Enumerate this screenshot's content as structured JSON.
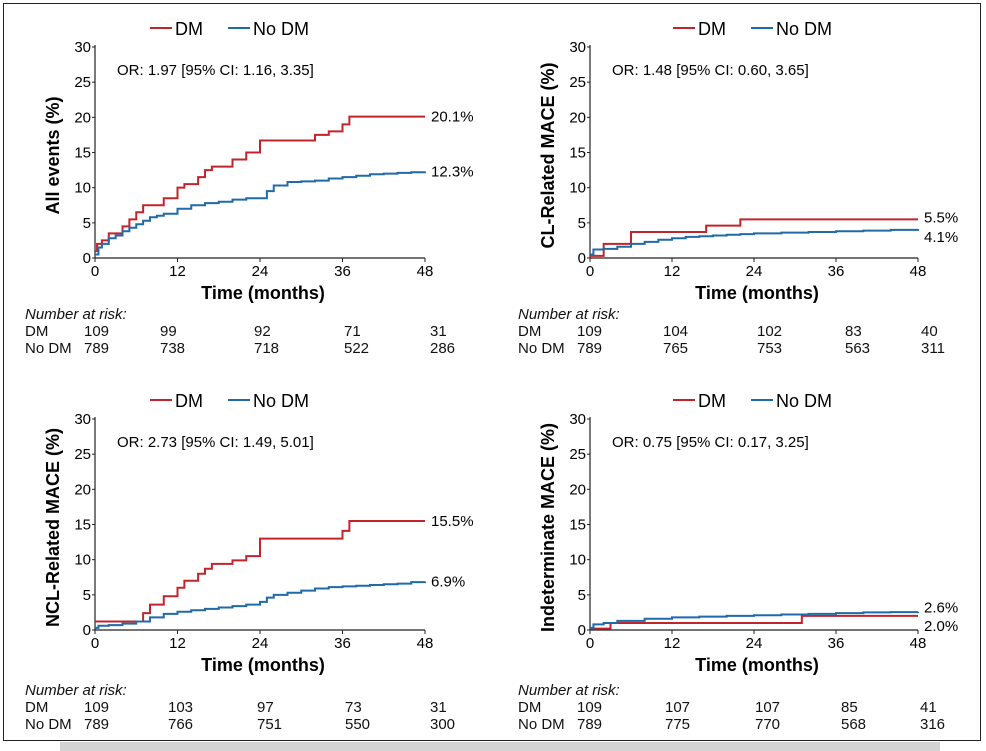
{
  "colors": {
    "dm": "#c0252b",
    "nodm": "#1f6aa8"
  },
  "chart_data": [
    {
      "type": "line",
      "xlabel": "Time (months)",
      "ylabel": "All events (%)",
      "xticks": [
        0,
        12,
        24,
        36,
        48
      ],
      "yticks": [
        0,
        5,
        10,
        15,
        20,
        25,
        30
      ],
      "xlim": [
        0,
        48
      ],
      "ylim": [
        0,
        30
      ],
      "legend": {
        "placement": "top-center",
        "entries": [
          "DM",
          "No DM"
        ]
      },
      "annotation": "OR: 1.97 [95% CI: 1.16, 3.35]",
      "series": [
        {
          "name": "DM",
          "color": "#c0252b",
          "end_label": "20.1%",
          "x": [
            0,
            0.3,
            1,
            2,
            3,
            4,
            5,
            6,
            7,
            8,
            10,
            12,
            13,
            15,
            16,
            17,
            18,
            20,
            22,
            24,
            26,
            28,
            30,
            32,
            34,
            36,
            37,
            38,
            40,
            42,
            44,
            46,
            48
          ],
          "y": [
            1.0,
            2.0,
            2.5,
            3.5,
            3.5,
            4.5,
            5.5,
            6.5,
            7.5,
            7.5,
            8.5,
            10.0,
            10.5,
            11.5,
            12.5,
            13.0,
            13.0,
            14.0,
            15.0,
            16.7,
            16.7,
            16.7,
            16.7,
            17.5,
            18.0,
            19.0,
            20.1,
            20.1,
            20.1,
            20.1,
            20.1,
            20.1,
            20.1
          ]
        },
        {
          "name": "No DM",
          "color": "#1f6aa8",
          "end_label": "12.3%",
          "x": [
            0,
            0.5,
            1,
            2,
            3,
            4,
            5,
            6,
            7,
            8,
            9,
            10,
            12,
            14,
            16,
            18,
            20,
            22,
            24,
            25,
            26,
            28,
            30,
            32,
            34,
            36,
            38,
            40,
            42,
            44,
            46,
            48
          ],
          "y": [
            0.5,
            1.5,
            2.0,
            2.8,
            3.2,
            3.8,
            4.3,
            4.8,
            5.3,
            5.8,
            6.0,
            6.3,
            7.0,
            7.5,
            7.8,
            8.0,
            8.3,
            8.5,
            8.5,
            9.5,
            10.3,
            10.8,
            10.9,
            11.0,
            11.3,
            11.5,
            11.7,
            11.9,
            12.0,
            12.1,
            12.2,
            12.3
          ]
        }
      ],
      "risk_table": {
        "title": "Number at risk:",
        "rows": [
          {
            "label": "DM",
            "values": [
              "109",
              "99",
              "92",
              "71",
              "31"
            ]
          },
          {
            "label": "No DM",
            "values": [
              "789",
              "738",
              "718",
              "522",
              "286"
            ]
          }
        ]
      }
    },
    {
      "type": "line",
      "xlabel": "Time (months)",
      "ylabel": "CL-Related MACE (%)",
      "xticks": [
        0,
        12,
        24,
        36,
        48
      ],
      "yticks": [
        0,
        5,
        10,
        15,
        20,
        25,
        30
      ],
      "xlim": [
        0,
        48
      ],
      "ylim": [
        0,
        30
      ],
      "legend": {
        "placement": "top-center",
        "entries": [
          "DM",
          "No DM"
        ]
      },
      "annotation": "OR: 1.48 [95% CI: 0.60, 3.65]",
      "series": [
        {
          "name": "DM",
          "color": "#c0252b",
          "end_label": "5.5%",
          "x": [
            0,
            1,
            2,
            5,
            6,
            10,
            16,
            17,
            20,
            22,
            30,
            40,
            48
          ],
          "y": [
            0.3,
            0.3,
            2.0,
            2.0,
            3.7,
            3.7,
            3.7,
            4.6,
            4.6,
            5.5,
            5.5,
            5.5,
            5.5
          ]
        },
        {
          "name": "No DM",
          "color": "#1f6aa8",
          "end_label": "4.1%",
          "x": [
            0,
            0.5,
            2,
            4,
            6,
            8,
            10,
            12,
            14,
            16,
            18,
            20,
            22,
            24,
            28,
            32,
            36,
            40,
            44,
            48
          ],
          "y": [
            0.5,
            1.2,
            1.3,
            1.6,
            2.0,
            2.3,
            2.6,
            2.8,
            3.0,
            3.1,
            3.2,
            3.3,
            3.4,
            3.5,
            3.6,
            3.7,
            3.8,
            3.9,
            4.0,
            4.1
          ]
        }
      ],
      "risk_table": {
        "title": "Number at risk:",
        "rows": [
          {
            "label": "DM",
            "values": [
              "109",
              "104",
              "102",
              "83",
              "40"
            ]
          },
          {
            "label": "No DM",
            "values": [
              "789",
              "765",
              "753",
              "563",
              "311"
            ]
          }
        ]
      }
    },
    {
      "type": "line",
      "xlabel": "Time (months)",
      "ylabel": "NCL-Related MACE (%)",
      "xticks": [
        0,
        12,
        24,
        36,
        48
      ],
      "yticks": [
        0,
        5,
        10,
        15,
        20,
        25,
        30
      ],
      "xlim": [
        0,
        48
      ],
      "ylim": [
        0,
        30
      ],
      "legend": {
        "placement": "top-center",
        "entries": [
          "DM",
          "No DM"
        ]
      },
      "annotation": "OR: 2.73 [95% CI: 1.49, 5.01]",
      "series": [
        {
          "name": "DM",
          "color": "#c0252b",
          "end_label": "15.5%",
          "x": [
            0,
            6,
            7,
            8,
            10,
            12,
            13,
            15,
            16,
            17,
            20,
            22,
            24,
            26,
            30,
            34,
            36,
            37,
            38,
            42,
            48
          ],
          "y": [
            1.2,
            1.2,
            2.4,
            3.6,
            4.8,
            6.0,
            7.0,
            8.0,
            8.7,
            9.4,
            9.9,
            10.5,
            13.0,
            13.0,
            13.0,
            13.0,
            14.1,
            15.5,
            15.5,
            15.5,
            15.5
          ]
        },
        {
          "name": "No DM",
          "color": "#1f6aa8",
          "end_label": "6.9%",
          "x": [
            0,
            0.5,
            2,
            4,
            6,
            8,
            10,
            12,
            14,
            16,
            18,
            20,
            22,
            24,
            25,
            26,
            28,
            30,
            32,
            34,
            36,
            38,
            40,
            42,
            44,
            46,
            48
          ],
          "y": [
            0.3,
            0.6,
            0.7,
            0.9,
            1.2,
            1.8,
            2.3,
            2.6,
            2.8,
            3.0,
            3.2,
            3.4,
            3.6,
            4.0,
            4.6,
            5.0,
            5.3,
            5.6,
            5.9,
            6.1,
            6.2,
            6.3,
            6.4,
            6.5,
            6.6,
            6.8,
            6.9
          ]
        }
      ],
      "risk_table": {
        "title": "Number at risk:",
        "rows": [
          {
            "label": "DM",
            "values": [
              "109",
              "103",
              "97",
              "73",
              "31"
            ]
          },
          {
            "label": "No DM",
            "values": [
              "789",
              "766",
              "751",
              "550",
              "300"
            ]
          }
        ]
      }
    },
    {
      "type": "line",
      "xlabel": "Time (months)",
      "ylabel": "Indeterminate MACE (%)",
      "xticks": [
        0,
        12,
        24,
        36,
        48
      ],
      "yticks": [
        0,
        5,
        10,
        15,
        20,
        25,
        30
      ],
      "xlim": [
        0,
        48
      ],
      "ylim": [
        0,
        30
      ],
      "legend": {
        "placement": "top-center",
        "entries": [
          "DM",
          "No DM"
        ]
      },
      "annotation": "OR: 0.75 [95% CI: 0.17, 3.25]",
      "series": [
        {
          "name": "DM",
          "color": "#c0252b",
          "end_label": "2.0%",
          "x": [
            0,
            1,
            3,
            10,
            20,
            30,
            31,
            40,
            48
          ],
          "y": [
            0.2,
            0.2,
            1.0,
            1.0,
            1.0,
            1.0,
            2.0,
            2.0,
            2.0
          ]
        },
        {
          "name": "No DM",
          "color": "#1f6aa8",
          "end_label": "2.6%",
          "x": [
            0,
            0.5,
            2,
            4,
            8,
            12,
            16,
            20,
            24,
            28,
            32,
            36,
            40,
            44,
            48
          ],
          "y": [
            0.3,
            0.8,
            1.0,
            1.3,
            1.6,
            1.8,
            1.9,
            2.0,
            2.1,
            2.2,
            2.3,
            2.4,
            2.5,
            2.55,
            2.6
          ]
        }
      ],
      "risk_table": {
        "title": "Number at risk:",
        "rows": [
          {
            "label": "DM",
            "values": [
              "109",
              "107",
              "107",
              "85",
              "41"
            ]
          },
          {
            "label": "No DM",
            "values": [
              "789",
              "775",
              "770",
              "568",
              "316"
            ]
          }
        ]
      }
    }
  ]
}
